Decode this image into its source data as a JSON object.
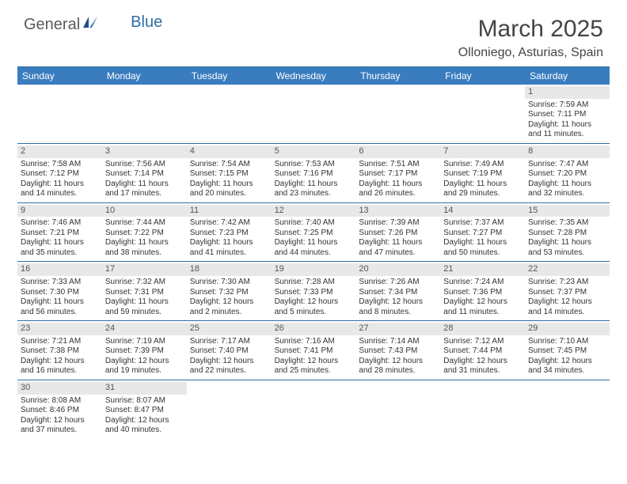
{
  "logo": {
    "general": "General",
    "blue": "Blue"
  },
  "title": "March 2025",
  "location": "Olloniego, Asturias, Spain",
  "colors": {
    "header_bg": "#3a7dbf",
    "border": "#2e6da4",
    "daynum_bg": "#e8e8e8",
    "text": "#333333"
  },
  "day_names": [
    "Sunday",
    "Monday",
    "Tuesday",
    "Wednesday",
    "Thursday",
    "Friday",
    "Saturday"
  ],
  "weeks": [
    [
      null,
      null,
      null,
      null,
      null,
      null,
      {
        "d": "1",
        "sr": "Sunrise: 7:59 AM",
        "ss": "Sunset: 7:11 PM",
        "dl1": "Daylight: 11 hours",
        "dl2": "and 11 minutes."
      }
    ],
    [
      {
        "d": "2",
        "sr": "Sunrise: 7:58 AM",
        "ss": "Sunset: 7:12 PM",
        "dl1": "Daylight: 11 hours",
        "dl2": "and 14 minutes."
      },
      {
        "d": "3",
        "sr": "Sunrise: 7:56 AM",
        "ss": "Sunset: 7:14 PM",
        "dl1": "Daylight: 11 hours",
        "dl2": "and 17 minutes."
      },
      {
        "d": "4",
        "sr": "Sunrise: 7:54 AM",
        "ss": "Sunset: 7:15 PM",
        "dl1": "Daylight: 11 hours",
        "dl2": "and 20 minutes."
      },
      {
        "d": "5",
        "sr": "Sunrise: 7:53 AM",
        "ss": "Sunset: 7:16 PM",
        "dl1": "Daylight: 11 hours",
        "dl2": "and 23 minutes."
      },
      {
        "d": "6",
        "sr": "Sunrise: 7:51 AM",
        "ss": "Sunset: 7:17 PM",
        "dl1": "Daylight: 11 hours",
        "dl2": "and 26 minutes."
      },
      {
        "d": "7",
        "sr": "Sunrise: 7:49 AM",
        "ss": "Sunset: 7:19 PM",
        "dl1": "Daylight: 11 hours",
        "dl2": "and 29 minutes."
      },
      {
        "d": "8",
        "sr": "Sunrise: 7:47 AM",
        "ss": "Sunset: 7:20 PM",
        "dl1": "Daylight: 11 hours",
        "dl2": "and 32 minutes."
      }
    ],
    [
      {
        "d": "9",
        "sr": "Sunrise: 7:46 AM",
        "ss": "Sunset: 7:21 PM",
        "dl1": "Daylight: 11 hours",
        "dl2": "and 35 minutes."
      },
      {
        "d": "10",
        "sr": "Sunrise: 7:44 AM",
        "ss": "Sunset: 7:22 PM",
        "dl1": "Daylight: 11 hours",
        "dl2": "and 38 minutes."
      },
      {
        "d": "11",
        "sr": "Sunrise: 7:42 AM",
        "ss": "Sunset: 7:23 PM",
        "dl1": "Daylight: 11 hours",
        "dl2": "and 41 minutes."
      },
      {
        "d": "12",
        "sr": "Sunrise: 7:40 AM",
        "ss": "Sunset: 7:25 PM",
        "dl1": "Daylight: 11 hours",
        "dl2": "and 44 minutes."
      },
      {
        "d": "13",
        "sr": "Sunrise: 7:39 AM",
        "ss": "Sunset: 7:26 PM",
        "dl1": "Daylight: 11 hours",
        "dl2": "and 47 minutes."
      },
      {
        "d": "14",
        "sr": "Sunrise: 7:37 AM",
        "ss": "Sunset: 7:27 PM",
        "dl1": "Daylight: 11 hours",
        "dl2": "and 50 minutes."
      },
      {
        "d": "15",
        "sr": "Sunrise: 7:35 AM",
        "ss": "Sunset: 7:28 PM",
        "dl1": "Daylight: 11 hours",
        "dl2": "and 53 minutes."
      }
    ],
    [
      {
        "d": "16",
        "sr": "Sunrise: 7:33 AM",
        "ss": "Sunset: 7:30 PM",
        "dl1": "Daylight: 11 hours",
        "dl2": "and 56 minutes."
      },
      {
        "d": "17",
        "sr": "Sunrise: 7:32 AM",
        "ss": "Sunset: 7:31 PM",
        "dl1": "Daylight: 11 hours",
        "dl2": "and 59 minutes."
      },
      {
        "d": "18",
        "sr": "Sunrise: 7:30 AM",
        "ss": "Sunset: 7:32 PM",
        "dl1": "Daylight: 12 hours",
        "dl2": "and 2 minutes."
      },
      {
        "d": "19",
        "sr": "Sunrise: 7:28 AM",
        "ss": "Sunset: 7:33 PM",
        "dl1": "Daylight: 12 hours",
        "dl2": "and 5 minutes."
      },
      {
        "d": "20",
        "sr": "Sunrise: 7:26 AM",
        "ss": "Sunset: 7:34 PM",
        "dl1": "Daylight: 12 hours",
        "dl2": "and 8 minutes."
      },
      {
        "d": "21",
        "sr": "Sunrise: 7:24 AM",
        "ss": "Sunset: 7:36 PM",
        "dl1": "Daylight: 12 hours",
        "dl2": "and 11 minutes."
      },
      {
        "d": "22",
        "sr": "Sunrise: 7:23 AM",
        "ss": "Sunset: 7:37 PM",
        "dl1": "Daylight: 12 hours",
        "dl2": "and 14 minutes."
      }
    ],
    [
      {
        "d": "23",
        "sr": "Sunrise: 7:21 AM",
        "ss": "Sunset: 7:38 PM",
        "dl1": "Daylight: 12 hours",
        "dl2": "and 16 minutes."
      },
      {
        "d": "24",
        "sr": "Sunrise: 7:19 AM",
        "ss": "Sunset: 7:39 PM",
        "dl1": "Daylight: 12 hours",
        "dl2": "and 19 minutes."
      },
      {
        "d": "25",
        "sr": "Sunrise: 7:17 AM",
        "ss": "Sunset: 7:40 PM",
        "dl1": "Daylight: 12 hours",
        "dl2": "and 22 minutes."
      },
      {
        "d": "26",
        "sr": "Sunrise: 7:16 AM",
        "ss": "Sunset: 7:41 PM",
        "dl1": "Daylight: 12 hours",
        "dl2": "and 25 minutes."
      },
      {
        "d": "27",
        "sr": "Sunrise: 7:14 AM",
        "ss": "Sunset: 7:43 PM",
        "dl1": "Daylight: 12 hours",
        "dl2": "and 28 minutes."
      },
      {
        "d": "28",
        "sr": "Sunrise: 7:12 AM",
        "ss": "Sunset: 7:44 PM",
        "dl1": "Daylight: 12 hours",
        "dl2": "and 31 minutes."
      },
      {
        "d": "29",
        "sr": "Sunrise: 7:10 AM",
        "ss": "Sunset: 7:45 PM",
        "dl1": "Daylight: 12 hours",
        "dl2": "and 34 minutes."
      }
    ],
    [
      {
        "d": "30",
        "sr": "Sunrise: 8:08 AM",
        "ss": "Sunset: 8:46 PM",
        "dl1": "Daylight: 12 hours",
        "dl2": "and 37 minutes."
      },
      {
        "d": "31",
        "sr": "Sunrise: 8:07 AM",
        "ss": "Sunset: 8:47 PM",
        "dl1": "Daylight: 12 hours",
        "dl2": "and 40 minutes."
      },
      null,
      null,
      null,
      null,
      null
    ]
  ]
}
